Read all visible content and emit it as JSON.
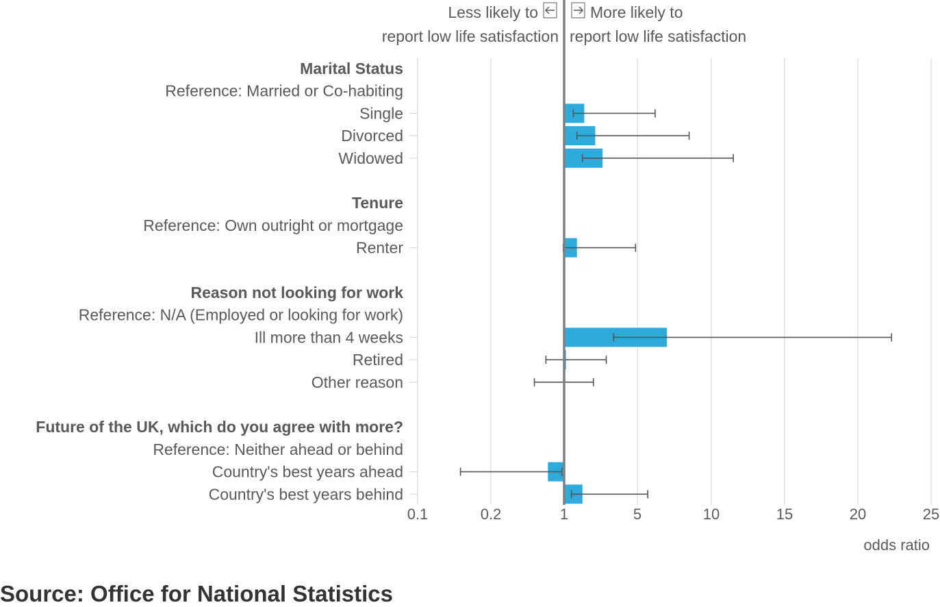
{
  "chart_data": {
    "type": "bar",
    "annotations": {
      "left_line1": "Less likely to",
      "left_line2": "report low life satisfaction",
      "right_line1": "More likely to",
      "right_line2": "report low life satisfaction"
    },
    "xlabel": "odds ratio",
    "x_ticks": [
      "0.1",
      "0.2",
      "1",
      "5",
      "10",
      "15",
      "20",
      "25"
    ],
    "reference_value": 1,
    "rows": [
      {
        "label": "Marital Status",
        "kind": "header"
      },
      {
        "label": "Reference: Married or Co-habiting",
        "kind": "reference"
      },
      {
        "label": "Single",
        "kind": "data",
        "value": 2.1,
        "ci_low": 1.5,
        "ci_high": 6.2
      },
      {
        "label": "Divorced",
        "kind": "data",
        "value": 2.7,
        "ci_low": 1.7,
        "ci_high": 8.5
      },
      {
        "label": "Widowed",
        "kind": "data",
        "value": 3.1,
        "ci_low": 2.0,
        "ci_high": 11.5
      },
      {
        "label": "",
        "kind": "spacer"
      },
      {
        "label": "Tenure",
        "kind": "header"
      },
      {
        "label": "Reference: Own outright or mortgage",
        "kind": "reference"
      },
      {
        "label": "Renter",
        "kind": "data",
        "value": 1.7,
        "ci_low": 0.98,
        "ci_high": 4.9
      },
      {
        "label": "",
        "kind": "spacer"
      },
      {
        "label": "Reason not looking for work",
        "kind": "header"
      },
      {
        "label": "Reference: N/A (Employed or looking for work)",
        "kind": "reference"
      },
      {
        "label": "Ill more than 4 weeks",
        "kind": "data",
        "value": 7.0,
        "ci_low": 3.7,
        "ci_high": 22.3
      },
      {
        "label": "Retired",
        "kind": "data",
        "value": 1.1,
        "ci_low": 0.67,
        "ci_high": 3.3
      },
      {
        "label": "Other reason",
        "kind": "data",
        "value": 1.0,
        "ci_low": 0.52,
        "ci_high": 2.6
      },
      {
        "label": "",
        "kind": "spacer"
      },
      {
        "label": "Future of the UK, which do you agree with more?",
        "kind": "header"
      },
      {
        "label": "Reference: Neither ahead or behind",
        "kind": "reference"
      },
      {
        "label": "Country's best years ahead",
        "kind": "data",
        "value": 0.7,
        "ci_low": 0.15,
        "ci_high": 0.95
      },
      {
        "label": "Country's best years behind",
        "kind": "data",
        "value": 2.0,
        "ci_low": 1.4,
        "ci_high": 5.7
      }
    ]
  },
  "colors": {
    "bar": "#2eaadc",
    "error_bar": "#555555",
    "gridline": "#d9d9d9",
    "reference_line": "#7f7f7f",
    "text": "#595959",
    "source_text": "#333333"
  },
  "source": "Source: Office for National Statistics"
}
